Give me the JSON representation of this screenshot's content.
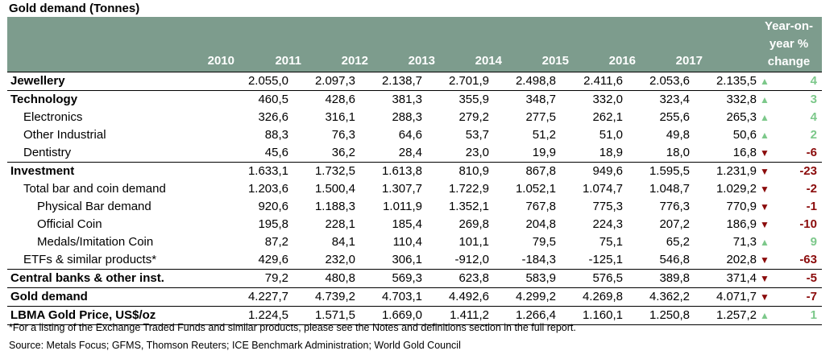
{
  "title": "Gold demand (Tonnes)",
  "years": [
    "2010",
    "2011",
    "2012",
    "2013",
    "2014",
    "2015",
    "2016",
    "2017"
  ],
  "change_header": [
    "Year-on-",
    "year %",
    "change"
  ],
  "rows": [
    {
      "label": "Jewellery",
      "values": [
        "2.055,0",
        "2.097,3",
        "2.138,7",
        "2.701,9",
        "2.498,8",
        "2.411,6",
        "2.053,6",
        "2.135,5"
      ],
      "dir": "up",
      "change": "4"
    },
    {
      "label": "Technology",
      "values": [
        "460,5",
        "428,6",
        "381,3",
        "355,9",
        "348,7",
        "332,0",
        "323,4",
        "332,8"
      ],
      "dir": "up",
      "change": "3"
    },
    {
      "label": "Electronics",
      "values": [
        "326,6",
        "316,1",
        "288,3",
        "279,2",
        "277,5",
        "262,1",
        "255,6",
        "265,3"
      ],
      "dir": "up",
      "change": "4"
    },
    {
      "label": "Other Industrial",
      "values": [
        "88,3",
        "76,3",
        "64,6",
        "53,7",
        "51,2",
        "51,0",
        "49,8",
        "50,6"
      ],
      "dir": "up",
      "change": "2"
    },
    {
      "label": "Dentistry",
      "values": [
        "45,6",
        "36,2",
        "28,4",
        "23,0",
        "19,9",
        "18,9",
        "18,0",
        "16,8"
      ],
      "dir": "down",
      "change": "-6"
    },
    {
      "label": "Investment",
      "values": [
        "1.633,1",
        "1.732,5",
        "1.613,8",
        "810,9",
        "867,8",
        "949,6",
        "1.595,5",
        "1.231,9"
      ],
      "dir": "down",
      "change": "-23"
    },
    {
      "label": "Total bar and coin demand",
      "values": [
        "1.203,6",
        "1.500,4",
        "1.307,7",
        "1.722,9",
        "1.052,1",
        "1.074,7",
        "1.048,7",
        "1.029,2"
      ],
      "dir": "down",
      "change": "-2"
    },
    {
      "label": "Physical Bar demand",
      "values": [
        "920,6",
        "1.188,3",
        "1.011,9",
        "1.352,1",
        "767,8",
        "775,3",
        "776,3",
        "770,9"
      ],
      "dir": "down",
      "change": "-1"
    },
    {
      "label": "Official Coin",
      "values": [
        "195,8",
        "228,1",
        "185,4",
        "269,8",
        "204,8",
        "224,3",
        "207,2",
        "186,9"
      ],
      "dir": "down",
      "change": "-10"
    },
    {
      "label": "Medals/Imitation Coin",
      "values": [
        "87,2",
        "84,1",
        "110,4",
        "101,1",
        "79,5",
        "75,1",
        "65,2",
        "71,3"
      ],
      "dir": "up",
      "change": "9"
    },
    {
      "label": "ETFs & similar products*",
      "values": [
        "429,6",
        "232,0",
        "306,1",
        "-912,0",
        "-184,3",
        "-125,1",
        "546,8",
        "202,8"
      ],
      "dir": "down",
      "change": "-63"
    },
    {
      "label": "Central banks & other inst.",
      "values": [
        "79,2",
        "480,8",
        "569,3",
        "623,8",
        "583,9",
        "576,5",
        "389,8",
        "371,4"
      ],
      "dir": "down",
      "change": "-5"
    },
    {
      "label": "Gold demand",
      "values": [
        "4.227,7",
        "4.739,2",
        "4.703,1",
        "4.492,6",
        "4.299,2",
        "4.269,8",
        "4.362,2",
        "4.071,7"
      ],
      "dir": "down",
      "change": "-7"
    },
    {
      "label": "LBMA Gold Price, US$/oz",
      "values": [
        "1.224,5",
        "1.571,5",
        "1.669,0",
        "1.411,2",
        "1.266,4",
        "1.160,1",
        "1.250,8",
        "1.257,2"
      ],
      "dir": "up",
      "change": "1"
    }
  ],
  "footnote": "*For a listing of the Exchange Traded Funds and similar products, please see the Notes and definitions section in the full report.",
  "source": "Source: Metals Focus; GFMS, Thomson Reuters; ICE Benchmark Administration; World Gold Council",
  "colors": {
    "header_bg": "#7d9c8d",
    "up": "#7cc88a",
    "down": "#8b0b0b"
  }
}
